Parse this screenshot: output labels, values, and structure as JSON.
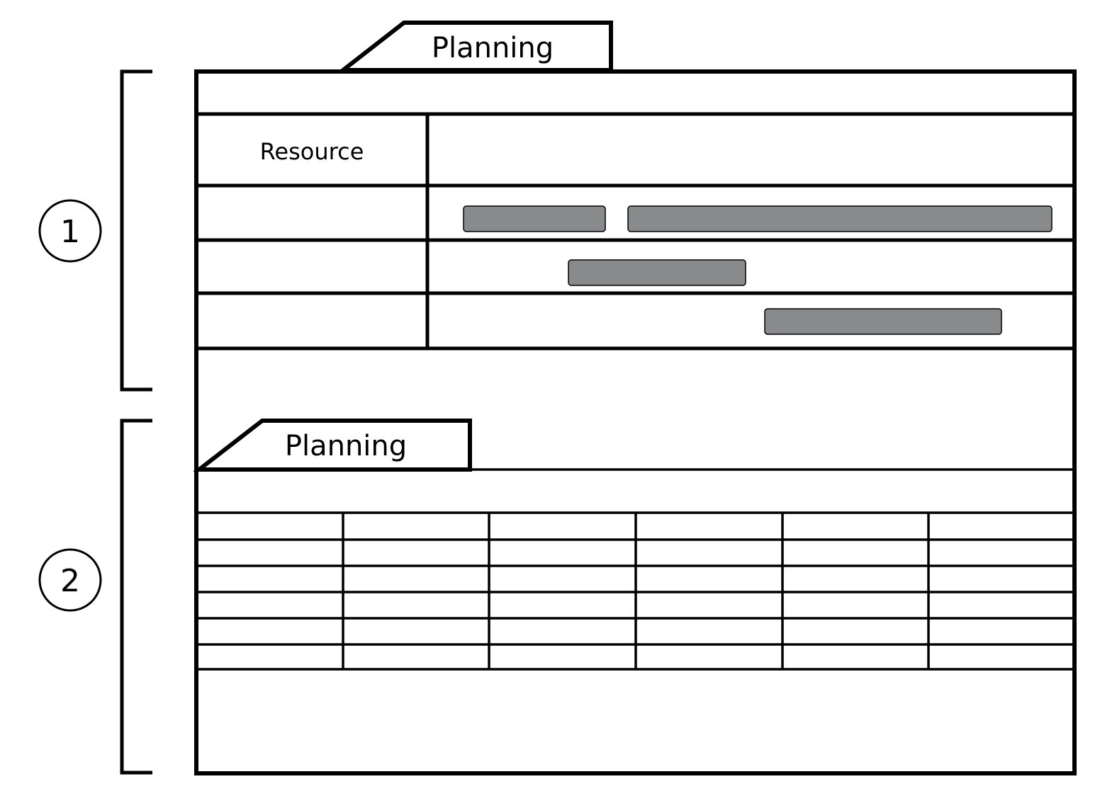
{
  "callouts": [
    {
      "number": "1"
    },
    {
      "number": "2"
    }
  ],
  "top_panel": {
    "tab_label": "Planning",
    "resource_header": "Resource"
  },
  "bottom_panel": {
    "tab_label": "Planning"
  },
  "colors": {
    "bar_fill": "#898a8c",
    "line": "#000000"
  }
}
